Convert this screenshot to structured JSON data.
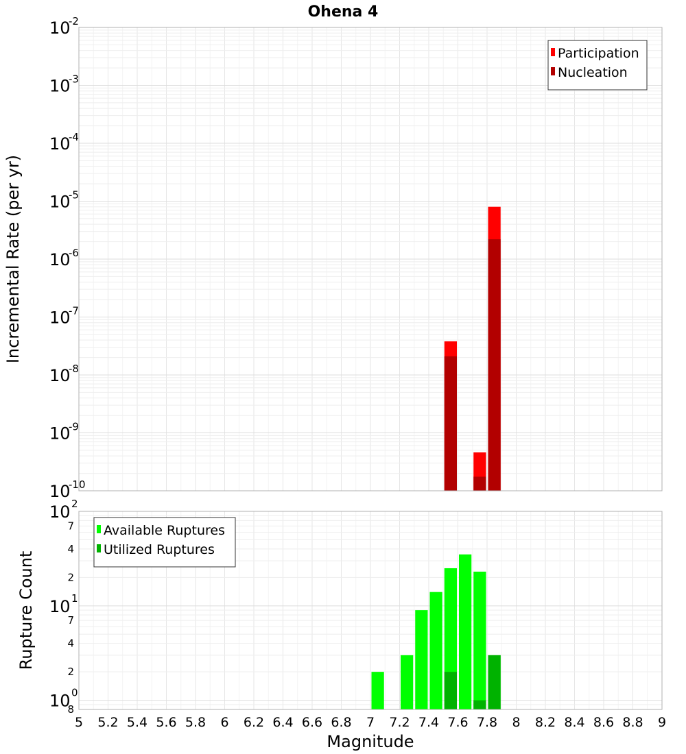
{
  "chart_data": [
    {
      "type": "bar",
      "title": "Ohena 4",
      "xlabel": "",
      "ylabel": "Incremental Rate (per yr)",
      "yscale": "log",
      "xlim": [
        5,
        9
      ],
      "ylim": [
        1e-10,
        0.01
      ],
      "grid": true,
      "legend_position": "top-right",
      "bar_width": 0.1,
      "series": [
        {
          "name": "Participation",
          "color": "#ff0000",
          "x": [
            7.55,
            7.75,
            7.85
          ],
          "values": [
            3.8e-08,
            4.6e-10,
            8e-06
          ]
        },
        {
          "name": "Nucleation",
          "color": "#b20000",
          "x": [
            7.55,
            7.75,
            7.85
          ],
          "values": [
            2.1e-08,
            1.75e-10,
            2.2e-06
          ]
        }
      ]
    },
    {
      "type": "bar",
      "title": "",
      "xlabel": "Magnitude",
      "ylabel": "Rupture Count",
      "yscale": "log",
      "xlim": [
        5,
        9
      ],
      "ylim": [
        0.8,
        100
      ],
      "xticks": [
        "5",
        "5.2",
        "5.4",
        "5.6",
        "5.8",
        "6",
        "6.2",
        "6.4",
        "6.6",
        "6.8",
        "7",
        "7.2",
        "7.4",
        "7.6",
        "7.8",
        "8",
        "8.2",
        "8.4",
        "8.6",
        "8.8",
        "9"
      ],
      "minor_tick_labels": [
        "2",
        "4",
        "7"
      ],
      "grid": true,
      "legend_position": "top-left",
      "bar_width": 0.1,
      "series": [
        {
          "name": "Available Ruptures",
          "color": "#00ff00",
          "x": [
            7.05,
            7.25,
            7.35,
            7.45,
            7.55,
            7.65,
            7.75,
            7.85
          ],
          "values": [
            2,
            3,
            9,
            14,
            25,
            35,
            23,
            3
          ]
        },
        {
          "name": "Utilized Ruptures",
          "color": "#00b200",
          "x": [
            7.55,
            7.75,
            7.85
          ],
          "values": [
            2,
            1,
            3
          ]
        }
      ]
    }
  ]
}
